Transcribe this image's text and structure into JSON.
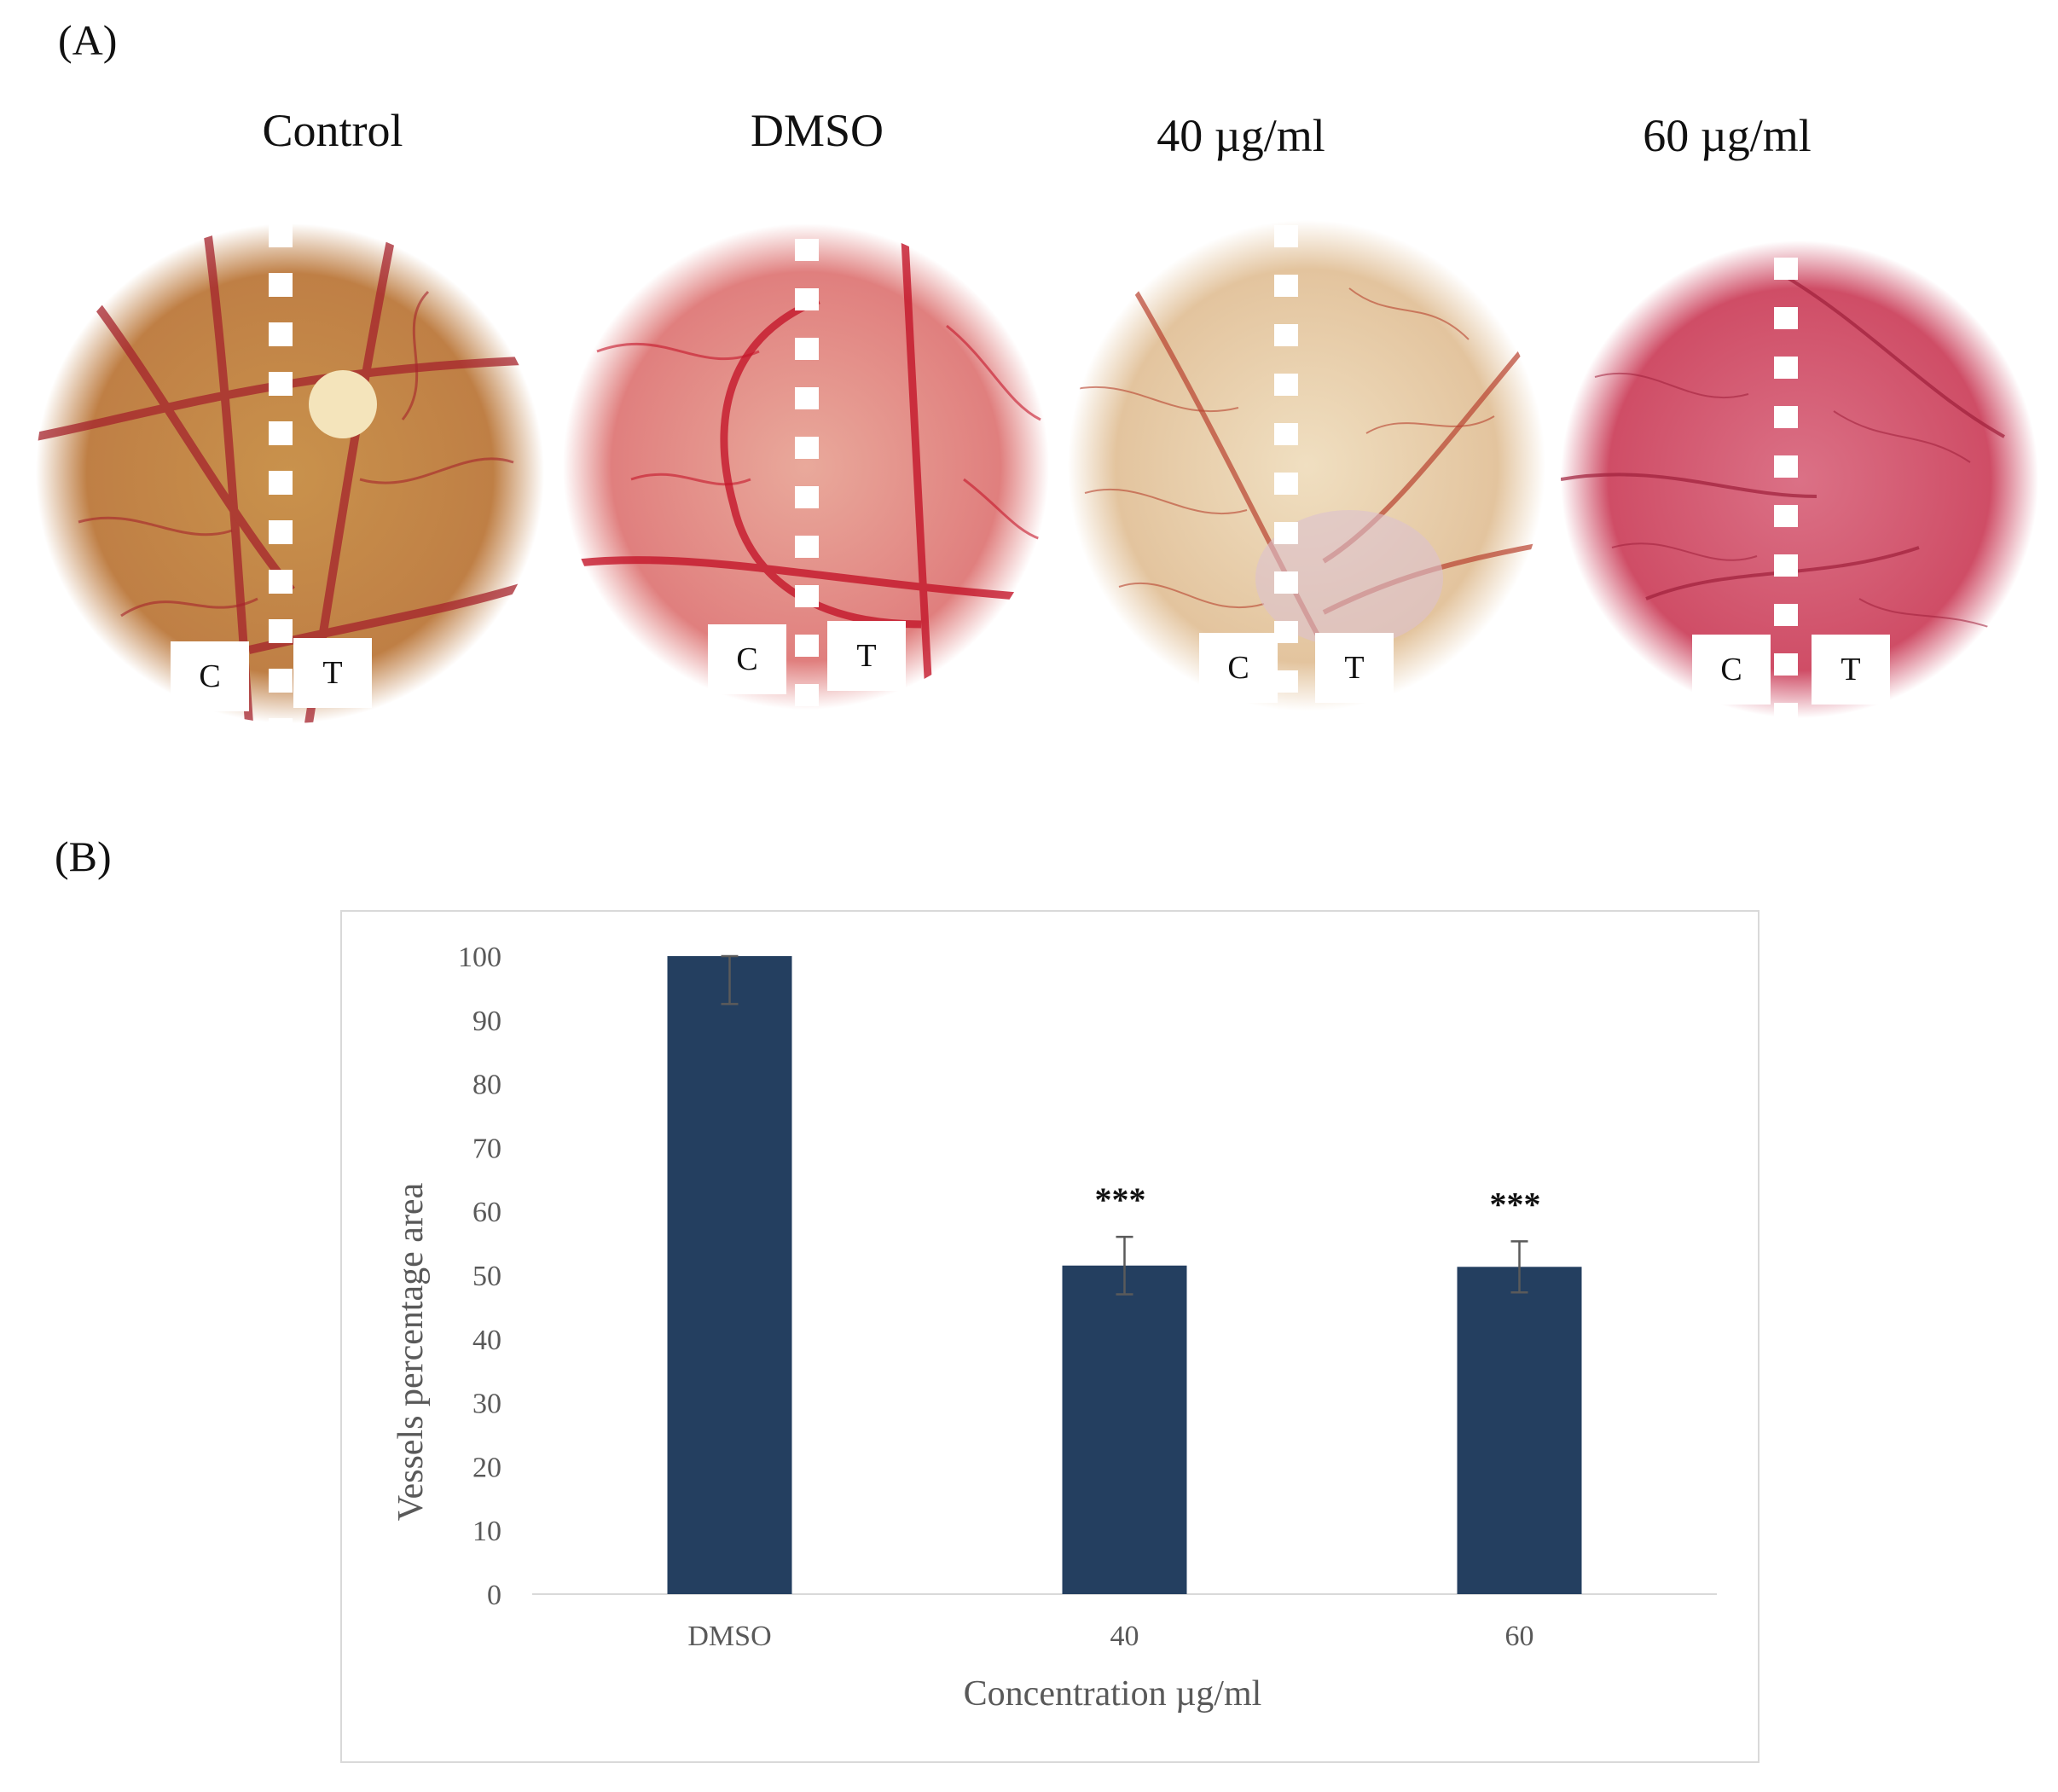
{
  "panels": {
    "a_label": "(A)",
    "b_label": "(B)"
  },
  "photos": [
    {
      "title": "Control",
      "left_marker": "C",
      "right_marker": "T",
      "tint": "#c9924c"
    },
    {
      "title": "DMSO",
      "left_marker": "C",
      "right_marker": "T",
      "tint": "#e39a8e"
    },
    {
      "title": "40 µg/ml",
      "left_marker": "C",
      "right_marker": "T",
      "tint": "#e8d4b0"
    },
    {
      "title": "60 µg/ml",
      "left_marker": "C",
      "right_marker": "T",
      "tint": "#d7607a"
    }
  ],
  "colors": {
    "bar": "#243f60",
    "error_bar": "#5a5a5a",
    "axis": "#d9d9d9",
    "vessel": "#b3202e"
  },
  "chart_data": {
    "type": "bar",
    "categories": [
      "DMSO",
      "40",
      "60"
    ],
    "values": [
      100,
      51.5,
      51.3
    ],
    "errors": [
      7.5,
      4.5,
      4.0
    ],
    "significance": [
      "",
      "***",
      "***"
    ],
    "xlabel": "Concentration µg/ml",
    "ylabel": "Vessels percentage area",
    "ylim": [
      0,
      100
    ],
    "yticks": [
      "0",
      "10",
      "20",
      "30",
      "40",
      "50",
      "60",
      "70",
      "80",
      "90",
      "100"
    ],
    "grid": false
  }
}
